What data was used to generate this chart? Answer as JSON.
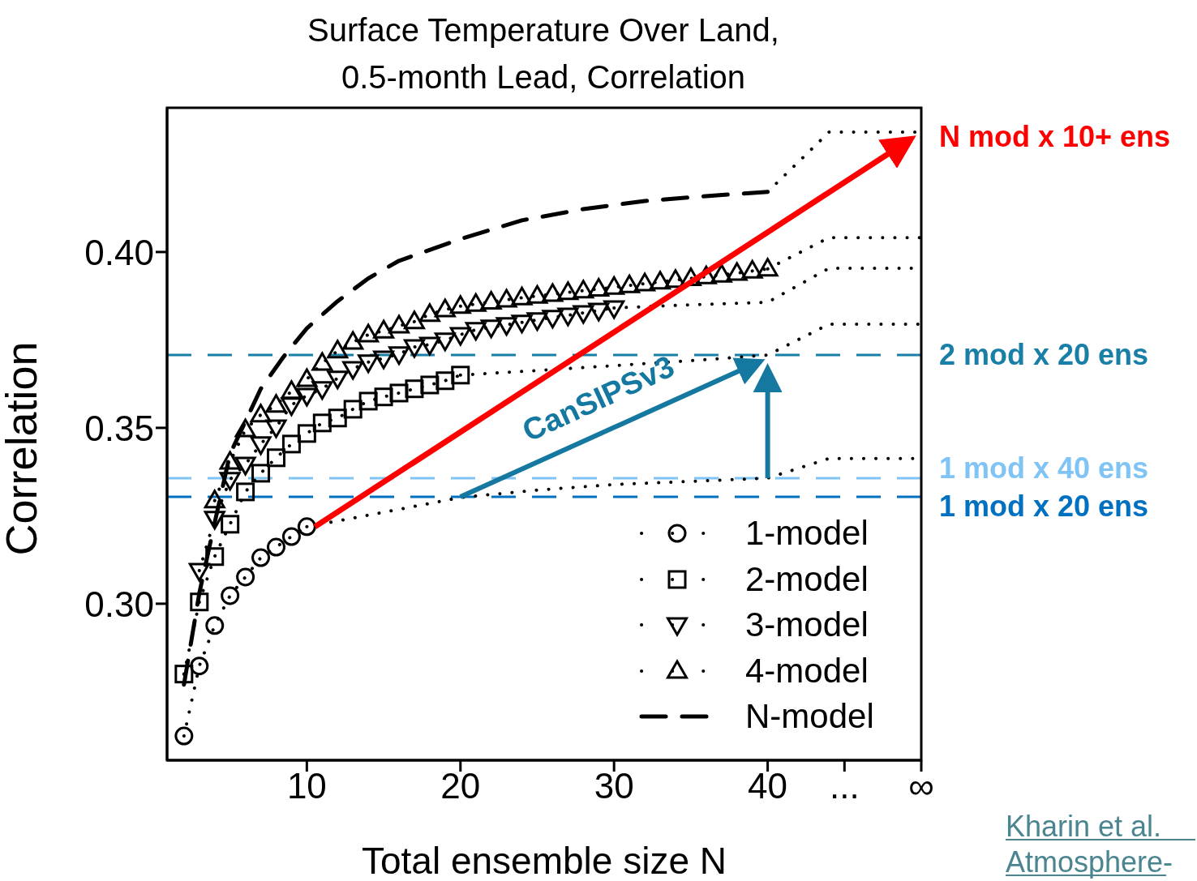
{
  "chart_data": {
    "type": "line",
    "title": "Surface Temperature Over Land,\n0.5-month Lead, Correlation",
    "xlabel": "Total ensemble size N",
    "ylabel": "Correlation",
    "xlim": [
      0.9,
      50
    ],
    "xticks": [
      10,
      20,
      30,
      40,
      {
        "value": 45,
        "label": "..."
      },
      {
        "value": 50,
        "label": "∞"
      }
    ],
    "ylim": [
      0.2555,
      0.441
    ],
    "yticks": [
      {
        "value": 0.3,
        "label": "0.30"
      },
      {
        "value": 0.35,
        "label": "0.35"
      },
      {
        "value": 0.4,
        "label": "0.40"
      }
    ],
    "legend": "bottom right",
    "series": [
      {
        "name": "1-model",
        "color": "#000000",
        "marker": "circle",
        "line_style": "dotted",
        "x": [
          2,
          3,
          4,
          5,
          6,
          7,
          8,
          9,
          10
        ],
        "values": [
          0.2624,
          0.2823,
          0.2938,
          0.3023,
          0.3076,
          0.3131,
          0.3161,
          0.3191,
          0.3219
        ]
      },
      {
        "color": "#000000",
        "marker": "none",
        "line_style": "dotted",
        "x": [
          10,
          15,
          20,
          25,
          30,
          35,
          40,
          44,
          50
        ],
        "values": [
          0.3219,
          0.326,
          0.3302,
          0.3323,
          0.3339,
          0.3348,
          0.3357,
          0.3413,
          0.3413
        ]
      },
      {
        "name": "2-model",
        "color": "#000000",
        "marker": "square",
        "line_style": "dotted",
        "x": [
          2,
          3,
          4,
          5,
          6,
          7,
          8,
          9,
          10,
          11,
          12,
          13,
          14,
          15,
          16,
          17,
          18,
          19,
          20
        ],
        "values": [
          0.28,
          0.3005,
          0.3134,
          0.3226,
          0.3318,
          0.3371,
          0.3415,
          0.3454,
          0.3484,
          0.3514,
          0.3528,
          0.3553,
          0.3576,
          0.3588,
          0.3599,
          0.3611,
          0.3622,
          0.3634,
          0.365
        ]
      },
      {
        "color": "#000000",
        "marker": "none",
        "line_style": "dotted",
        "x": [
          20,
          25,
          30,
          35,
          40,
          44,
          50
        ],
        "values": [
          0.365,
          0.3663,
          0.3677,
          0.3691,
          0.3707,
          0.3795,
          0.3795
        ]
      },
      {
        "name": "3-model",
        "color": "#000000",
        "marker": "triangle_down",
        "line_style": "dotted",
        "x": [
          3,
          4,
          5,
          6,
          7,
          8,
          9,
          10,
          11,
          12,
          13,
          14,
          15,
          16,
          17,
          18,
          19,
          20,
          21,
          22,
          23,
          24,
          25,
          26,
          27,
          28,
          29,
          30
        ],
        "values": [
          0.3094,
          0.3242,
          0.3353,
          0.3396,
          0.3454,
          0.3502,
          0.3565,
          0.3592,
          0.3611,
          0.3641,
          0.3668,
          0.3687,
          0.3698,
          0.371,
          0.373,
          0.3737,
          0.3749,
          0.3765,
          0.3779,
          0.3786,
          0.3793,
          0.38,
          0.3807,
          0.3814,
          0.382,
          0.3827,
          0.3834,
          0.3841
        ]
      },
      {
        "color": "#000000",
        "marker": "none",
        "line_style": "dotted",
        "x": [
          30,
          35,
          40,
          44,
          50
        ],
        "values": [
          0.3841,
          0.385,
          0.3857,
          0.3954,
          0.3954
        ]
      },
      {
        "name": "4-model",
        "color": "#000000",
        "marker": "triangle",
        "line_style": "dotted",
        "x": [
          4,
          5,
          6,
          7,
          8,
          9,
          10,
          11,
          12,
          13,
          14,
          15,
          16,
          17,
          18,
          19,
          20,
          21,
          22,
          23,
          24,
          25,
          26,
          27,
          28,
          29,
          30,
          31,
          32,
          33,
          34,
          35,
          36,
          37,
          38,
          39,
          40
        ],
        "values": [
          0.3293,
          0.3403,
          0.3495,
          0.3537,
          0.3565,
          0.3604,
          0.3638,
          0.3684,
          0.3719,
          0.3744,
          0.3765,
          0.3776,
          0.379,
          0.3802,
          0.3823,
          0.3836,
          0.3846,
          0.3852,
          0.3858,
          0.3864,
          0.387,
          0.3875,
          0.388,
          0.3885,
          0.389,
          0.3895,
          0.39,
          0.3905,
          0.391,
          0.3915,
          0.392,
          0.3925,
          0.393,
          0.3935,
          0.394,
          0.3946,
          0.3952
        ]
      },
      {
        "color": "#000000",
        "marker": "none",
        "line_style": "dotted",
        "x": [
          40,
          44,
          50
        ],
        "values": [
          0.3952,
          0.4041,
          0.4041
        ]
      },
      {
        "name": "N-model",
        "color": "#000000",
        "marker": "none",
        "line_style": "dashed",
        "x": [
          2,
          3,
          4,
          5,
          6,
          7,
          8.5,
          10,
          12,
          14,
          16,
          20,
          24,
          28,
          32,
          36,
          40
        ],
        "values": [
          0.277,
          0.303,
          0.323,
          0.3426,
          0.3518,
          0.3611,
          0.3703,
          0.3783,
          0.386,
          0.3925,
          0.3975,
          0.4037,
          0.409,
          0.4122,
          0.4145,
          0.4159,
          0.4171
        ]
      },
      {
        "color": "#000000",
        "marker": "none",
        "line_style": "dotted",
        "x": [
          40,
          44,
          50
        ],
        "values": [
          0.4171,
          0.4341,
          0.4341
        ]
      }
    ],
    "ref_lines": [
      {
        "axis": "y",
        "value": 0.3707,
        "label": "2 mod x 20 ens",
        "color": "#1a7fa6",
        "line_style": "dashed"
      },
      {
        "axis": "y",
        "value": 0.3357,
        "label": "1 mod x 40 ens",
        "color": "#80c4f5",
        "line_style": "dashed"
      },
      {
        "axis": "y",
        "value": 0.3304,
        "label": "1 mod x 20 ens",
        "color": "#0070c0",
        "line_style": "dashed"
      }
    ],
    "annotations": [
      {
        "text": "N mod x 10+ ens",
        "x": 50,
        "y": 0.4341
      },
      "CanSIPSv3",
      "Kharin et al.",
      "Atmosphere-"
    ]
  }
}
